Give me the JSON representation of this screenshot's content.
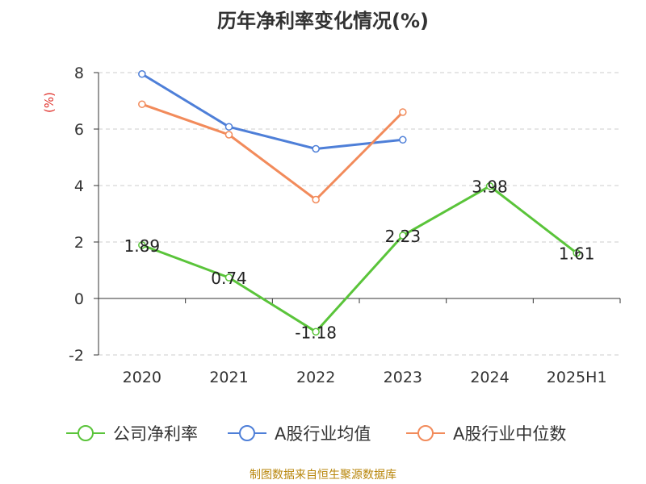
{
  "title": "历年净利率变化情况(%)",
  "footer": "制图数据来自恒生聚源数据库",
  "chart_data": {
    "type": "line",
    "title": "历年净利率变化情况(%)",
    "ylabel": "(%)",
    "categories": [
      "2020",
      "2021",
      "2022",
      "2023",
      "2024",
      "2025H1"
    ],
    "ylim": [
      -2,
      8
    ],
    "yticks": [
      "8",
      "6",
      "4",
      "2",
      "0",
      "-2"
    ],
    "grid": true,
    "legend_position": "bottom",
    "series": [
      {
        "name": "公司净利率",
        "color": "#5ac43a",
        "values": [
          1.89,
          0.74,
          -1.18,
          2.23,
          3.98,
          1.61
        ],
        "labels": [
          "1.89",
          "0.74",
          "-1.18",
          "2.23",
          "3.98",
          "1.61"
        ],
        "show_labels": true
      },
      {
        "name": "A股行业均值",
        "color": "#4e7fd8",
        "values": [
          7.95,
          6.08,
          5.3,
          5.62,
          null,
          null
        ],
        "show_labels": false
      },
      {
        "name": "A股行业中位数",
        "color": "#f28b5b",
        "values": [
          6.88,
          5.8,
          3.5,
          6.6,
          null,
          null
        ],
        "show_labels": false
      }
    ]
  }
}
